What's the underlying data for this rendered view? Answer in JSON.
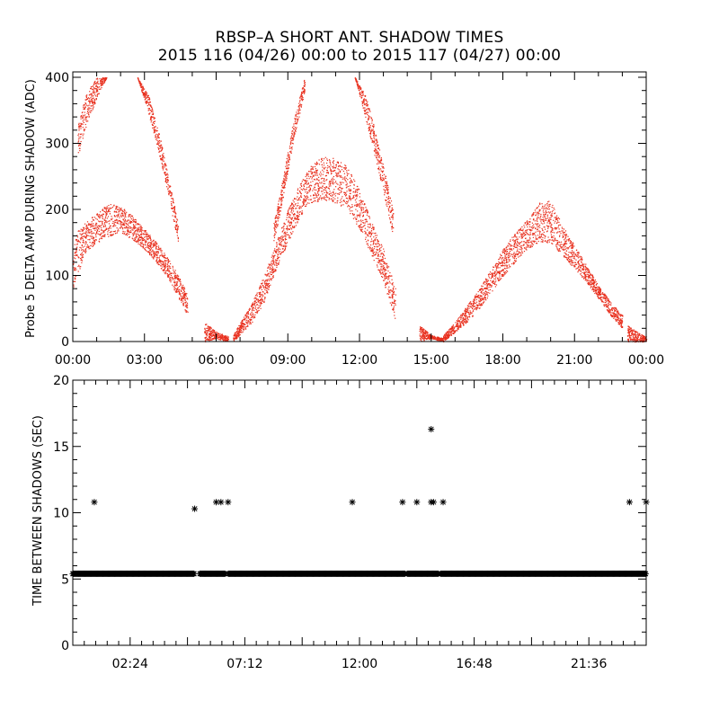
{
  "title_line1": "RBSP–A SHORT ANT. SHADOW TIMES",
  "title_line2": "2015 116 (04/26) 00:00 to 2015 117 (04/27) 00:00",
  "colors": {
    "series_top": "#e8301e",
    "series_bottom": "#000000"
  },
  "chart_data": [
    {
      "type": "scatter",
      "ylabel": "Probe 5 DELTA AMP DURING SHADOW (ADC)",
      "xlim": [
        0,
        24
      ],
      "ylim": [
        0,
        400
      ],
      "x_tick_labels": [
        "00:00",
        "03:00",
        "06:00",
        "09:00",
        "12:00",
        "15:00",
        "18:00",
        "21:00",
        "00:00"
      ],
      "y_tick_labels": [
        "0",
        "100",
        "200",
        "300",
        "400"
      ],
      "marker": "dot",
      "envelopes": [
        {
          "x": [
            0.0,
            0.5,
            1.0,
            1.5,
            2.0,
            2.5,
            3.0,
            3.5,
            4.0,
            4.5,
            4.8
          ],
          "lower": [
            80,
            135,
            150,
            160,
            165,
            155,
            140,
            120,
            95,
            60,
            40
          ],
          "upper": [
            160,
            180,
            195,
            210,
            205,
            190,
            170,
            150,
            125,
            95,
            70
          ]
        },
        {
          "x": [
            0.2,
            0.6,
            1.0,
            1.4
          ],
          "lower": [
            280,
            330,
            370,
            400
          ],
          "upper": [
            330,
            380,
            400,
            400
          ]
        },
        {
          "x": [
            2.7,
            3.2,
            3.7,
            4.1,
            4.4
          ],
          "lower": [
            400,
            340,
            270,
            200,
            150
          ],
          "upper": [
            400,
            370,
            300,
            230,
            180
          ]
        },
        {
          "x": [
            5.5,
            6.0,
            6.5
          ],
          "lower": [
            0,
            5,
            0
          ],
          "upper": [
            30,
            15,
            8
          ]
        },
        {
          "x": [
            6.7,
            7.5,
            8.0,
            8.5,
            9.0,
            9.5,
            10.0,
            10.5,
            11.0,
            11.5,
            12.0,
            12.5,
            13.0,
            13.5
          ],
          "lower": [
            0,
            30,
            60,
            110,
            150,
            190,
            210,
            215,
            210,
            200,
            170,
            130,
            90,
            30
          ],
          "upper": [
            10,
            60,
            100,
            150,
            200,
            240,
            270,
            280,
            278,
            265,
            230,
            180,
            140,
            80
          ]
        },
        {
          "x": [
            8.4,
            8.8,
            9.2,
            9.7
          ],
          "lower": [
            150,
            220,
            300,
            380
          ],
          "upper": [
            180,
            250,
            330,
            400
          ]
        },
        {
          "x": [
            11.8,
            12.3,
            12.9,
            13.4
          ],
          "lower": [
            400,
            330,
            240,
            160
          ],
          "upper": [
            400,
            370,
            280,
            200
          ]
        },
        {
          "x": [
            14.5,
            15.0,
            15.5
          ],
          "lower": [
            0,
            5,
            0
          ],
          "upper": [
            25,
            10,
            6
          ]
        },
        {
          "x": [
            15.5,
            16.0,
            16.5,
            17.0,
            17.5,
            18.0,
            18.5,
            19.0,
            19.5,
            20.0,
            20.5,
            21.0,
            21.5,
            22.0,
            22.5,
            23.0
          ],
          "lower": [
            0,
            15,
            30,
            50,
            75,
            100,
            120,
            140,
            150,
            150,
            130,
            110,
            90,
            65,
            40,
            20
          ],
          "upper": [
            10,
            30,
            55,
            80,
            110,
            140,
            165,
            185,
            210,
            215,
            175,
            145,
            115,
            85,
            60,
            40
          ]
        },
        {
          "x": [
            23.2,
            23.6,
            24.0
          ],
          "lower": [
            0,
            0,
            0
          ],
          "upper": [
            25,
            15,
            8
          ]
        }
      ]
    },
    {
      "type": "scatter",
      "ylabel": "TIME BETWEEN SHADOWS (SEC)",
      "xlim": [
        0,
        24
      ],
      "ylim": [
        0,
        20
      ],
      "x_tick_labels": [
        "02:24",
        "07:12",
        "12:00",
        "16:48",
        "21:36"
      ],
      "x_tick_values": [
        2.4,
        7.2,
        12.0,
        16.8,
        21.6
      ],
      "y_tick_labels": [
        "0",
        "5",
        "10",
        "15",
        "20"
      ],
      "marker": "asterisk",
      "baseline_value": 5.4,
      "baseline_x_range": [
        0,
        24
      ],
      "baseline_gaps": [
        [
          5.1,
          5.3
        ],
        [
          6.4,
          6.5
        ],
        [
          13.9,
          14.0
        ],
        [
          15.3,
          15.4
        ]
      ],
      "points": [
        {
          "x": 0.9,
          "y": 10.8
        },
        {
          "x": 5.1,
          "y": 10.3
        },
        {
          "x": 6.0,
          "y": 10.8
        },
        {
          "x": 6.2,
          "y": 10.8
        },
        {
          "x": 6.5,
          "y": 10.8
        },
        {
          "x": 11.7,
          "y": 10.8
        },
        {
          "x": 13.8,
          "y": 10.8
        },
        {
          "x": 14.4,
          "y": 10.8
        },
        {
          "x": 15.0,
          "y": 10.8
        },
        {
          "x": 15.1,
          "y": 10.8
        },
        {
          "x": 15.0,
          "y": 16.3
        },
        {
          "x": 15.5,
          "y": 10.8
        },
        {
          "x": 23.3,
          "y": 10.8
        },
        {
          "x": 24.0,
          "y": 10.8
        }
      ]
    }
  ]
}
